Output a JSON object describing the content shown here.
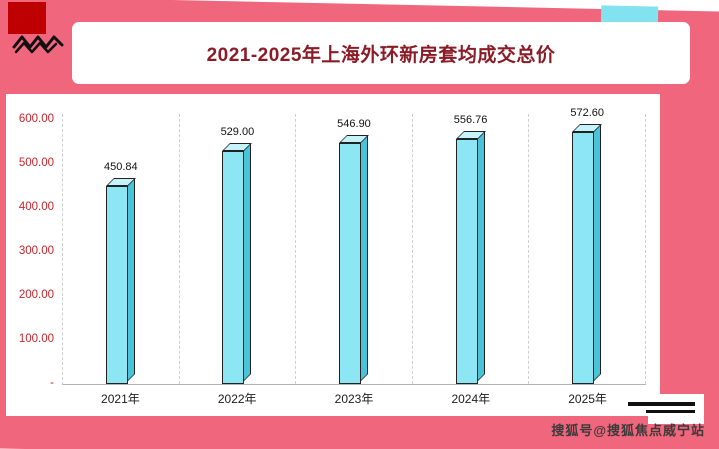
{
  "header": {
    "title": "2021-2025年上海外环新房套均成交总价"
  },
  "watermark": {
    "text": "搜狐号@搜狐焦点威宁站"
  },
  "icons": {
    "squiggle": "scribble-zigzag-icon",
    "red_block": "red-square-accent",
    "cyan_block": "cyan-rectangle-accent"
  },
  "colors": {
    "background_pink": "#f0667c",
    "accent_red": "#bf0000",
    "accent_cyan": "#82e2ef",
    "title_text": "#8b1c27",
    "bar_fill": "#8ce6f4",
    "bar_side": "#49c3d8",
    "bar_top": "#c6f3fa",
    "y_axis_label": "#c9262c"
  },
  "chart_data": {
    "type": "bar",
    "title": "2021-2025年上海外环新房套均成交总价",
    "categories": [
      "2021年",
      "2022年",
      "2023年",
      "2024年",
      "2025年"
    ],
    "values": [
      450.84,
      529.0,
      546.9,
      556.76,
      572.6
    ],
    "value_labels": [
      "450.84",
      "529.00",
      "546.90",
      "556.76",
      "572.60"
    ],
    "y_ticks": [
      {
        "label": "600.00",
        "value": 600
      },
      {
        "label": "500.00",
        "value": 500
      },
      {
        "label": "400.00",
        "value": 400
      },
      {
        "label": "300.00",
        "value": 300
      },
      {
        "label": "200.00",
        "value": 200
      },
      {
        "label": "100.00",
        "value": 100
      },
      {
        "label": "-",
        "value": 0
      }
    ],
    "ylim": [
      0,
      620
    ],
    "xlabel": "",
    "ylabel": "",
    "grid": "vertical-dashed",
    "legend": "none",
    "bar_style": "3d-cuboid-cyan"
  }
}
